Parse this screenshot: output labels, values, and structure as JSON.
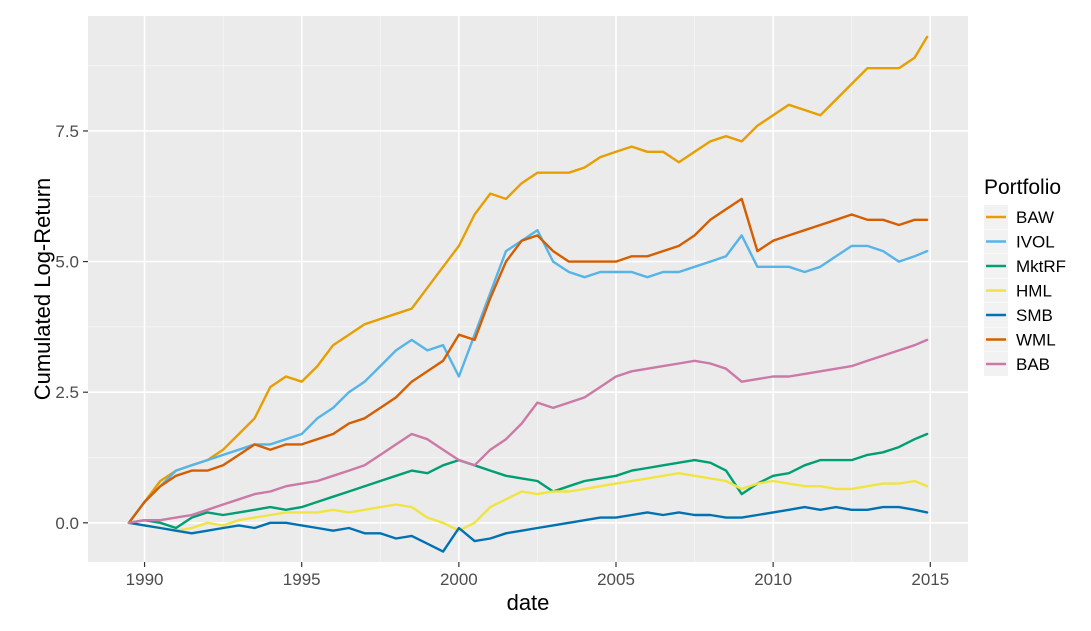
{
  "chart_data": {
    "type": "line",
    "title": "",
    "xlabel": "date",
    "ylabel": "Cumulated Log-Return",
    "xlim": [
      1988.2,
      2016.2
    ],
    "ylim": [
      -0.75,
      9.7
    ],
    "xticks": [
      1990,
      1995,
      2000,
      2005,
      2010,
      2015
    ],
    "xtick_labels": [
      "1990",
      "1995",
      "2000",
      "2005",
      "2010",
      "2015"
    ],
    "yticks": [
      0,
      2.5,
      5,
      7.5
    ],
    "ytick_labels": [
      "0.0",
      "2.5",
      "5.0",
      "7.5"
    ],
    "grid": true,
    "legend": {
      "title": "Portfolio",
      "position": "right"
    },
    "series": [
      {
        "name": "BAW",
        "color": "#E69F00",
        "x": [
          1989.5,
          1990.0,
          1990.5,
          1991.0,
          1991.5,
          1992.0,
          1992.5,
          1993.0,
          1993.5,
          1994.0,
          1994.5,
          1995.0,
          1995.5,
          1996.0,
          1996.5,
          1997.0,
          1997.5,
          1998.0,
          1998.5,
          1999.0,
          1999.5,
          2000.0,
          2000.5,
          2001.0,
          2001.5,
          2002.0,
          2002.5,
          2003.0,
          2003.5,
          2004.0,
          2004.5,
          2005.0,
          2005.5,
          2006.0,
          2006.5,
          2007.0,
          2007.5,
          2008.0,
          2008.5,
          2009.0,
          2009.5,
          2010.0,
          2010.5,
          2011.0,
          2011.5,
          2012.0,
          2012.5,
          2013.0,
          2013.5,
          2014.0,
          2014.5,
          2014.9
        ],
        "values": [
          0.0,
          0.4,
          0.8,
          1.0,
          1.1,
          1.2,
          1.4,
          1.7,
          2.0,
          2.6,
          2.8,
          2.7,
          3.0,
          3.4,
          3.6,
          3.8,
          3.9,
          4.0,
          4.1,
          4.5,
          4.9,
          5.3,
          5.9,
          6.3,
          6.2,
          6.5,
          6.7,
          6.7,
          6.7,
          6.8,
          7.0,
          7.1,
          7.2,
          7.1,
          7.1,
          6.9,
          7.1,
          7.3,
          7.4,
          7.3,
          7.6,
          7.8,
          8.0,
          7.9,
          7.8,
          8.1,
          8.4,
          8.7,
          8.7,
          8.7,
          8.9,
          9.3
        ]
      },
      {
        "name": "IVOL",
        "color": "#56B4E9",
        "x": [
          1989.5,
          1990.0,
          1990.5,
          1991.0,
          1991.5,
          1992.0,
          1992.5,
          1993.0,
          1993.5,
          1994.0,
          1994.5,
          1995.0,
          1995.5,
          1996.0,
          1996.5,
          1997.0,
          1997.5,
          1998.0,
          1998.5,
          1999.0,
          1999.5,
          2000.0,
          2000.5,
          2001.0,
          2001.5,
          2002.0,
          2002.5,
          2003.0,
          2003.5,
          2004.0,
          2004.5,
          2005.0,
          2005.5,
          2006.0,
          2006.5,
          2007.0,
          2007.5,
          2008.0,
          2008.5,
          2009.0,
          2009.5,
          2010.0,
          2010.5,
          2011.0,
          2011.5,
          2012.0,
          2012.5,
          2013.0,
          2013.5,
          2014.0,
          2014.5,
          2014.9
        ],
        "values": [
          0.0,
          0.4,
          0.7,
          1.0,
          1.1,
          1.2,
          1.3,
          1.4,
          1.5,
          1.5,
          1.6,
          1.7,
          2.0,
          2.2,
          2.5,
          2.7,
          3.0,
          3.3,
          3.5,
          3.3,
          3.4,
          2.8,
          3.6,
          4.4,
          5.2,
          5.4,
          5.6,
          5.0,
          4.8,
          4.7,
          4.8,
          4.8,
          4.8,
          4.7,
          4.8,
          4.8,
          4.9,
          5.0,
          5.1,
          5.5,
          4.9,
          4.9,
          4.9,
          4.8,
          4.9,
          5.1,
          5.3,
          5.3,
          5.2,
          5.0,
          5.1,
          5.2
        ]
      },
      {
        "name": "MktRF",
        "color": "#009E73",
        "x": [
          1989.5,
          1990.0,
          1990.5,
          1991.0,
          1991.5,
          1992.0,
          1992.5,
          1993.0,
          1993.5,
          1994.0,
          1994.5,
          1995.0,
          1995.5,
          1996.0,
          1996.5,
          1997.0,
          1997.5,
          1998.0,
          1998.5,
          1999.0,
          1999.5,
          2000.0,
          2000.5,
          2001.0,
          2001.5,
          2002.0,
          2002.5,
          2003.0,
          2003.5,
          2004.0,
          2004.5,
          2005.0,
          2005.5,
          2006.0,
          2006.5,
          2007.0,
          2007.5,
          2008.0,
          2008.5,
          2009.0,
          2009.5,
          2010.0,
          2010.5,
          2011.0,
          2011.5,
          2012.0,
          2012.5,
          2013.0,
          2013.5,
          2014.0,
          2014.5,
          2014.9
        ],
        "values": [
          0.0,
          0.05,
          0.0,
          -0.1,
          0.1,
          0.2,
          0.15,
          0.2,
          0.25,
          0.3,
          0.25,
          0.3,
          0.4,
          0.5,
          0.6,
          0.7,
          0.8,
          0.9,
          1.0,
          0.95,
          1.1,
          1.2,
          1.1,
          1.0,
          0.9,
          0.85,
          0.8,
          0.6,
          0.7,
          0.8,
          0.85,
          0.9,
          1.0,
          1.05,
          1.1,
          1.15,
          1.2,
          1.15,
          1.0,
          0.55,
          0.75,
          0.9,
          0.95,
          1.1,
          1.2,
          1.2,
          1.2,
          1.3,
          1.35,
          1.45,
          1.6,
          1.7
        ]
      },
      {
        "name": "HML",
        "color": "#F0E442",
        "x": [
          1989.5,
          1990.0,
          1990.5,
          1991.0,
          1991.5,
          1992.0,
          1992.5,
          1993.0,
          1993.5,
          1994.0,
          1994.5,
          1995.0,
          1995.5,
          1996.0,
          1996.5,
          1997.0,
          1997.5,
          1998.0,
          1998.5,
          1999.0,
          1999.5,
          2000.0,
          2000.5,
          2001.0,
          2001.5,
          2002.0,
          2002.5,
          2003.0,
          2003.5,
          2004.0,
          2004.5,
          2005.0,
          2005.5,
          2006.0,
          2006.5,
          2007.0,
          2007.5,
          2008.0,
          2008.5,
          2009.0,
          2009.5,
          2010.0,
          2010.5,
          2011.0,
          2011.5,
          2012.0,
          2012.5,
          2013.0,
          2013.5,
          2014.0,
          2014.5,
          2014.9
        ],
        "values": [
          0.0,
          -0.05,
          -0.1,
          -0.15,
          -0.1,
          0.0,
          -0.05,
          0.05,
          0.1,
          0.15,
          0.2,
          0.2,
          0.2,
          0.25,
          0.2,
          0.25,
          0.3,
          0.35,
          0.3,
          0.1,
          0.0,
          -0.15,
          0.0,
          0.3,
          0.45,
          0.6,
          0.55,
          0.6,
          0.6,
          0.65,
          0.7,
          0.75,
          0.8,
          0.85,
          0.9,
          0.95,
          0.9,
          0.85,
          0.8,
          0.65,
          0.75,
          0.8,
          0.75,
          0.7,
          0.7,
          0.65,
          0.65,
          0.7,
          0.75,
          0.75,
          0.8,
          0.7
        ]
      },
      {
        "name": "SMB",
        "color": "#0072B2",
        "x": [
          1989.5,
          1990.0,
          1990.5,
          1991.0,
          1991.5,
          1992.0,
          1992.5,
          1993.0,
          1993.5,
          1994.0,
          1994.5,
          1995.0,
          1995.5,
          1996.0,
          1996.5,
          1997.0,
          1997.5,
          1998.0,
          1998.5,
          1999.0,
          1999.5,
          2000.0,
          2000.5,
          2001.0,
          2001.5,
          2002.0,
          2002.5,
          2003.0,
          2003.5,
          2004.0,
          2004.5,
          2005.0,
          2005.5,
          2006.0,
          2006.5,
          2007.0,
          2007.5,
          2008.0,
          2008.5,
          2009.0,
          2009.5,
          2010.0,
          2010.5,
          2011.0,
          2011.5,
          2012.0,
          2012.5,
          2013.0,
          2013.5,
          2014.0,
          2014.5,
          2014.9
        ],
        "values": [
          0.0,
          -0.05,
          -0.1,
          -0.15,
          -0.2,
          -0.15,
          -0.1,
          -0.05,
          -0.1,
          0.0,
          0.0,
          -0.05,
          -0.1,
          -0.15,
          -0.1,
          -0.2,
          -0.2,
          -0.3,
          -0.25,
          -0.4,
          -0.55,
          -0.1,
          -0.35,
          -0.3,
          -0.2,
          -0.15,
          -0.1,
          -0.05,
          0.0,
          0.05,
          0.1,
          0.1,
          0.15,
          0.2,
          0.15,
          0.2,
          0.15,
          0.15,
          0.1,
          0.1,
          0.15,
          0.2,
          0.25,
          0.3,
          0.25,
          0.3,
          0.25,
          0.25,
          0.3,
          0.3,
          0.25,
          0.2
        ]
      },
      {
        "name": "WML",
        "color": "#D55E00",
        "x": [
          1989.5,
          1990.0,
          1990.5,
          1991.0,
          1991.5,
          1992.0,
          1992.5,
          1993.0,
          1993.5,
          1994.0,
          1994.5,
          1995.0,
          1995.5,
          1996.0,
          1996.5,
          1997.0,
          1997.5,
          1998.0,
          1998.5,
          1999.0,
          1999.5,
          2000.0,
          2000.5,
          2001.0,
          2001.5,
          2002.0,
          2002.5,
          2003.0,
          2003.5,
          2004.0,
          2004.5,
          2005.0,
          2005.5,
          2006.0,
          2006.5,
          2007.0,
          2007.5,
          2008.0,
          2008.5,
          2009.0,
          2009.5,
          2010.0,
          2010.5,
          2011.0,
          2011.5,
          2012.0,
          2012.5,
          2013.0,
          2013.5,
          2014.0,
          2014.5,
          2014.9
        ],
        "values": [
          0.0,
          0.4,
          0.7,
          0.9,
          1.0,
          1.0,
          1.1,
          1.3,
          1.5,
          1.4,
          1.5,
          1.5,
          1.6,
          1.7,
          1.9,
          2.0,
          2.2,
          2.4,
          2.7,
          2.9,
          3.1,
          3.6,
          3.5,
          4.3,
          5.0,
          5.4,
          5.5,
          5.2,
          5.0,
          5.0,
          5.0,
          5.0,
          5.1,
          5.1,
          5.2,
          5.3,
          5.5,
          5.8,
          6.0,
          6.2,
          5.2,
          5.4,
          5.5,
          5.6,
          5.7,
          5.8,
          5.9,
          5.8,
          5.8,
          5.7,
          5.8,
          5.8
        ]
      },
      {
        "name": "BAB",
        "color": "#CC79A7",
        "x": [
          1989.5,
          1990.0,
          1990.5,
          1991.0,
          1991.5,
          1992.0,
          1992.5,
          1993.0,
          1993.5,
          1994.0,
          1994.5,
          1995.0,
          1995.5,
          1996.0,
          1996.5,
          1997.0,
          1997.5,
          1998.0,
          1998.5,
          1999.0,
          1999.5,
          2000.0,
          2000.5,
          2001.0,
          2001.5,
          2002.0,
          2002.5,
          2003.0,
          2003.5,
          2004.0,
          2004.5,
          2005.0,
          2005.5,
          2006.0,
          2006.5,
          2007.0,
          2007.5,
          2008.0,
          2008.5,
          2009.0,
          2009.5,
          2010.0,
          2010.5,
          2011.0,
          2011.5,
          2012.0,
          2012.5,
          2013.0,
          2013.5,
          2014.0,
          2014.5,
          2014.9
        ],
        "values": [
          0.0,
          0.05,
          0.05,
          0.1,
          0.15,
          0.25,
          0.35,
          0.45,
          0.55,
          0.6,
          0.7,
          0.75,
          0.8,
          0.9,
          1.0,
          1.1,
          1.3,
          1.5,
          1.7,
          1.6,
          1.4,
          1.2,
          1.1,
          1.4,
          1.6,
          1.9,
          2.3,
          2.2,
          2.3,
          2.4,
          2.6,
          2.8,
          2.9,
          2.95,
          3.0,
          3.05,
          3.1,
          3.05,
          2.95,
          2.7,
          2.75,
          2.8,
          2.8,
          2.85,
          2.9,
          2.95,
          3.0,
          3.1,
          3.2,
          3.3,
          3.4,
          3.5
        ]
      }
    ]
  }
}
